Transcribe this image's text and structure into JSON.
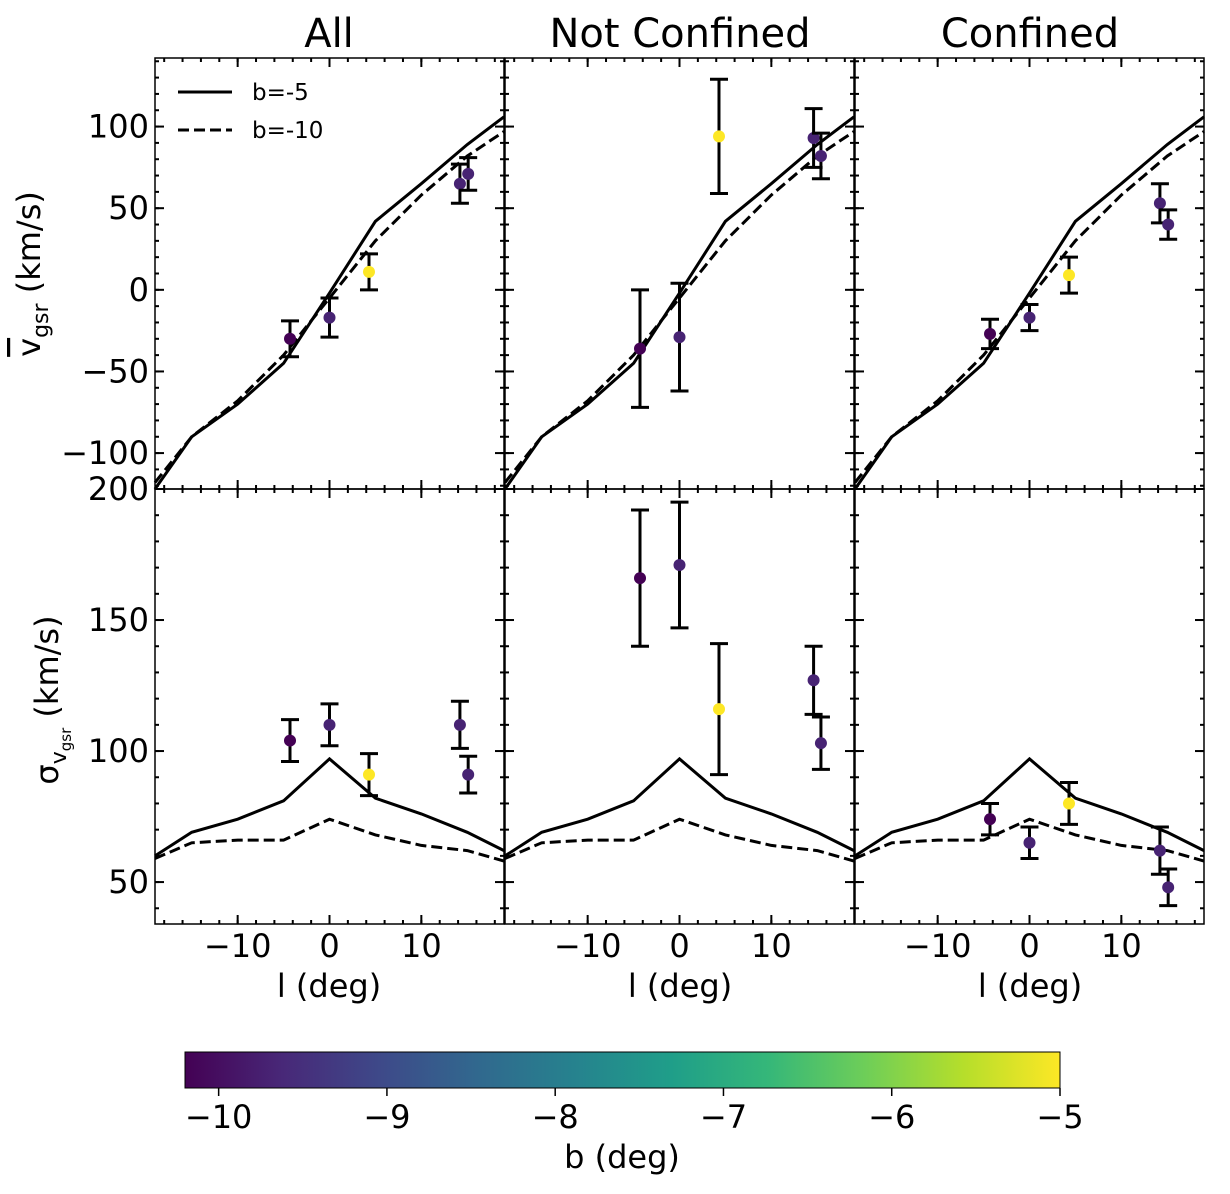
{
  "chart_data": {
    "type": "scatter",
    "columns": [
      "All",
      "Not Confined",
      "Confined"
    ],
    "xlabel": "l (deg)",
    "xlim": [
      -19,
      19
    ],
    "xticks": [
      -10,
      0,
      10
    ],
    "xtick_labels": [
      "−10",
      "0",
      "10"
    ],
    "legend": {
      "placement": "top-left",
      "entries": [
        "b=-5",
        "b=-10"
      ]
    },
    "rows": [
      {
        "id": "mean",
        "ylabel": "v_gsr (km/s)",
        "ylabel_main": "v",
        "ylabel_sub": "gsr",
        "ylabel_unit": "(km/s)",
        "ylim": [
          -122,
          142
        ],
        "yticks": [
          -100,
          -50,
          0,
          50,
          100
        ],
        "ytick_labels": [
          "−100",
          "−50",
          "0",
          "50",
          "100"
        ],
        "model_x": [
          -19,
          -15,
          -10,
          -5,
          0,
          5,
          10,
          15,
          19
        ],
        "model_b5": [
          -122,
          -90,
          -70,
          -45,
          -2,
          42,
          65,
          89,
          106
        ],
        "model_b10": [
          -118,
          -90,
          -68,
          -40,
          -5,
          30,
          58,
          82,
          97
        ],
        "panels": [
          {
            "points": [
              {
                "l": -4.3,
                "y": -30,
                "err": 11,
                "b": -10.2
              },
              {
                "l": 0,
                "y": -17,
                "err": 12,
                "b": -9.7
              },
              {
                "l": 4.3,
                "y": 11,
                "err": 11,
                "b": -5.0
              },
              {
                "l": 14.2,
                "y": 65,
                "err": 12,
                "b": -9.7
              },
              {
                "l": 15.1,
                "y": 71,
                "err": 10,
                "b": -9.7
              }
            ]
          },
          {
            "points": [
              {
                "l": -4.3,
                "y": -36,
                "err": 36,
                "b": -10.2
              },
              {
                "l": 0,
                "y": -29,
                "err": 33,
                "b": -9.7
              },
              {
                "l": 4.3,
                "y": 94,
                "err": 35,
                "b": -5.0
              },
              {
                "l": 14.6,
                "y": 93,
                "err": 18,
                "b": -9.7
              },
              {
                "l": 15.4,
                "y": 82,
                "err": 14,
                "b": -9.7
              }
            ]
          },
          {
            "points": [
              {
                "l": -4.3,
                "y": -27,
                "err": 9,
                "b": -10.2
              },
              {
                "l": 0,
                "y": -17,
                "err": 8,
                "b": -9.7
              },
              {
                "l": 4.3,
                "y": 9,
                "err": 11,
                "b": -5.0
              },
              {
                "l": 14.2,
                "y": 53,
                "err": 12,
                "b": -9.7
              },
              {
                "l": 15.1,
                "y": 40,
                "err": 9,
                "b": -9.7
              }
            ]
          }
        ]
      },
      {
        "id": "dispersion",
        "ylabel": "σ_vgsr (km/s)",
        "ylabel_main": "σ",
        "ylabel_sub": "v",
        "ylabel_subsub": "gsr",
        "ylabel_unit": "(km/s)",
        "ylim": [
          34,
          200
        ],
        "yticks": [
          50,
          100,
          150,
          200
        ],
        "ytick_labels": [
          "50",
          "100",
          "150",
          "200"
        ],
        "model_x": [
          -19,
          -15,
          -10,
          -5,
          0,
          5,
          10,
          15,
          19
        ],
        "model_b5": [
          60,
          69,
          74,
          81,
          97,
          82,
          76,
          69,
          62
        ],
        "model_b10": [
          59,
          65,
          66,
          66,
          74,
          68,
          64,
          62,
          58
        ],
        "panels": [
          {
            "points": [
              {
                "l": -4.3,
                "y": 104,
                "err": 8,
                "b": -10.2
              },
              {
                "l": 0,
                "y": 110,
                "err": 8,
                "b": -9.7
              },
              {
                "l": 4.3,
                "y": 91,
                "err": 8,
                "b": -5.0
              },
              {
                "l": 14.2,
                "y": 110,
                "err": 9,
                "b": -9.7
              },
              {
                "l": 15.1,
                "y": 91,
                "err": 7,
                "b": -9.7
              }
            ]
          },
          {
            "points": [
              {
                "l": -4.3,
                "y": 166,
                "err": 26,
                "b": -10.2
              },
              {
                "l": 0,
                "y": 171,
                "err": 24,
                "b": -9.7
              },
              {
                "l": 4.3,
                "y": 116,
                "err": 25,
                "b": -5.0
              },
              {
                "l": 14.6,
                "y": 127,
                "err": 13,
                "b": -9.7
              },
              {
                "l": 15.4,
                "y": 103,
                "err": 10,
                "b": -9.7
              }
            ]
          },
          {
            "points": [
              {
                "l": -4.3,
                "y": 74,
                "err": 6,
                "b": -10.2
              },
              {
                "l": 0,
                "y": 65,
                "err": 6,
                "b": -9.7
              },
              {
                "l": 4.3,
                "y": 80,
                "err": 8,
                "b": -5.0
              },
              {
                "l": 14.2,
                "y": 62,
                "err": 9,
                "b": -9.7
              },
              {
                "l": 15.1,
                "y": 48,
                "err": 7,
                "b": -9.7
              }
            ]
          }
        ]
      }
    ],
    "colorbar": {
      "label": "b (deg)",
      "range": [
        -10.2,
        -5
      ],
      "ticks": [
        -10,
        -9,
        -8,
        -7,
        -6,
        -5
      ],
      "tick_labels": [
        "−10",
        "−9",
        "−8",
        "−7",
        "−6",
        "−5"
      ],
      "colormap": "viridis",
      "stops": [
        "#440154",
        "#482878",
        "#3e4989",
        "#31688e",
        "#26828e",
        "#1f9e89",
        "#35b779",
        "#6ece58",
        "#b5de2b",
        "#fde725"
      ]
    }
  }
}
